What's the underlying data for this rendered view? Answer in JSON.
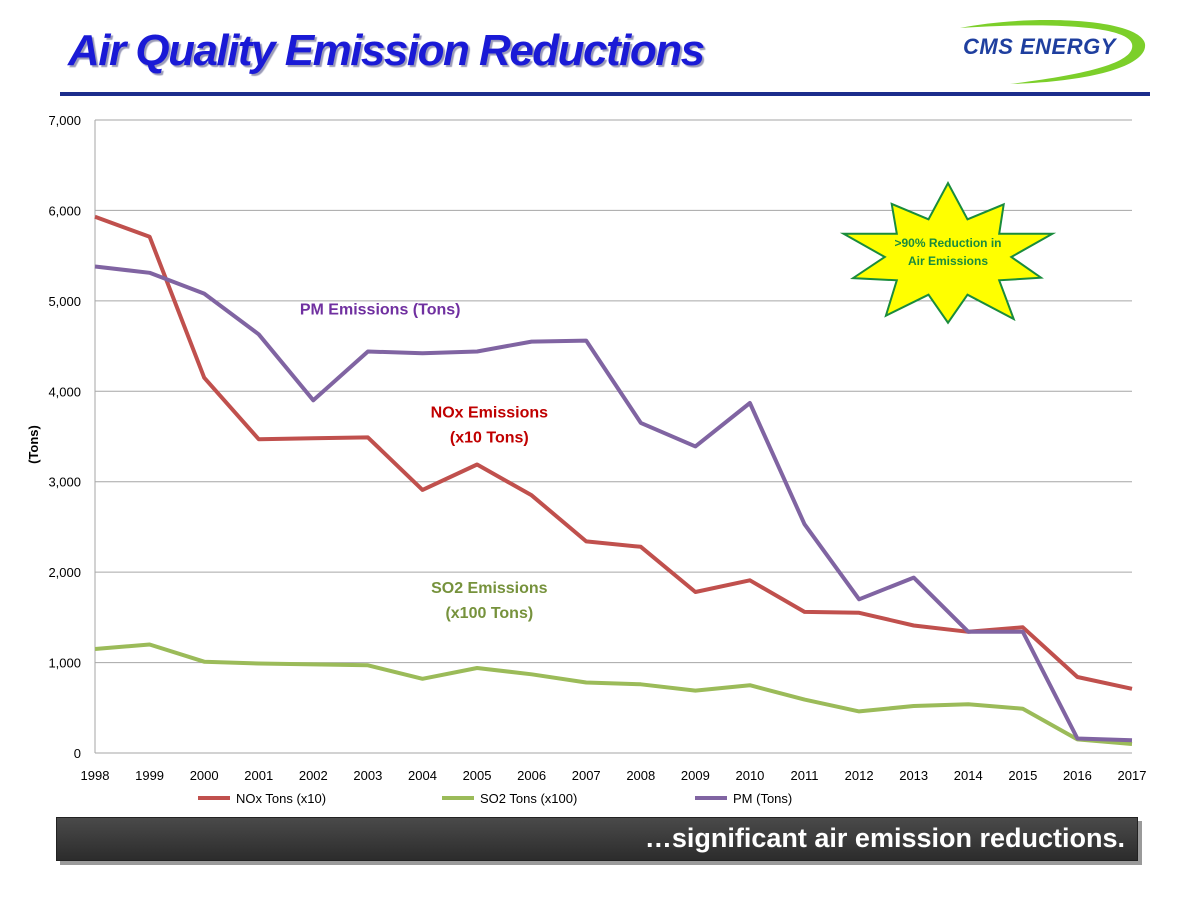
{
  "header": {
    "title": "Air Quality Emission Reductions",
    "logo_text": "CMS ENERGY"
  },
  "colors": {
    "title": "#1a1ad6",
    "nox": "#c0504d",
    "so2": "#9bbb59",
    "pm": "#8064a2",
    "annot_nox": "#c00000",
    "annot_so2": "#76923c",
    "annot_pm": "#7030a0",
    "starburst_fill": "#ffff00",
    "starburst_stroke": "#1a8c3c"
  },
  "chart_data": {
    "type": "line",
    "ylabel": "(Tons)",
    "ylim": [
      0,
      7000
    ],
    "yticks": [
      0,
      1000,
      2000,
      3000,
      4000,
      5000,
      6000,
      7000
    ],
    "ytick_labels": [
      "0",
      "1,000",
      "2,000",
      "3,000",
      "4,000",
      "5,000",
      "6,000",
      "7,000"
    ],
    "grid": true,
    "legend_position": "bottom",
    "categories": [
      "1998",
      "1999",
      "2000",
      "2001",
      "2002",
      "2003",
      "2004",
      "2005",
      "2006",
      "2007",
      "2008",
      "2009",
      "2010",
      "2011",
      "2012",
      "2013",
      "2014",
      "2015",
      "2016",
      "2017"
    ],
    "series": [
      {
        "name": "NOx Tons (x10)",
        "color_key": "nox",
        "values": [
          5930,
          5710,
          4150,
          3470,
          3480,
          3490,
          2910,
          3190,
          2850,
          2340,
          2280,
          1780,
          1910,
          1560,
          1550,
          1410,
          1340,
          1390,
          840,
          710
        ]
      },
      {
        "name": "SO2 Tons (x100)",
        "color_key": "so2",
        "values": [
          1150,
          1200,
          1010,
          990,
          980,
          970,
          820,
          940,
          870,
          780,
          760,
          690,
          750,
          590,
          460,
          520,
          540,
          490,
          150,
          100
        ]
      },
      {
        "name": "PM (Tons)",
        "color_key": "pm",
        "values": [
          5380,
          5310,
          5080,
          4630,
          3900,
          4440,
          4420,
          4440,
          4550,
          4560,
          3650,
          3390,
          3870,
          2530,
          1700,
          1940,
          1340,
          1340,
          160,
          140
        ]
      }
    ],
    "annotations": [
      {
        "lines": [
          "PM Emissions (Tons)"
        ],
        "color_key": "annot_pm",
        "at_category": "2003",
        "at_value": 4850
      },
      {
        "lines": [
          "NOx Emissions",
          "(x10 Tons)"
        ],
        "color_key": "annot_nox",
        "at_category": "2005",
        "at_value": 3710
      },
      {
        "lines": [
          "SO2 Emissions",
          "(x100 Tons)"
        ],
        "color_key": "annot_so2",
        "at_category": "2005",
        "at_value": 1770
      }
    ],
    "callout": {
      "lines": [
        ">90% Reduction in",
        "Air Emissions"
      ]
    }
  },
  "footer": {
    "banner_text": "…significant air emission reductions."
  }
}
